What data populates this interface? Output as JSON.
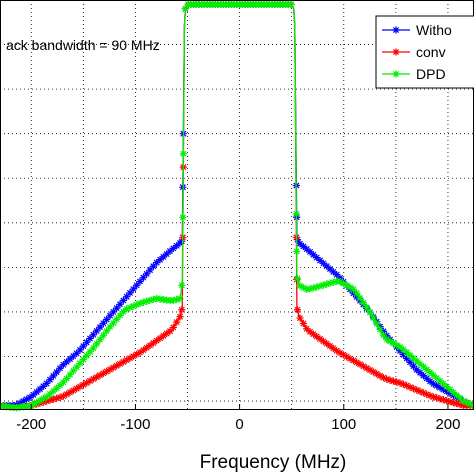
{
  "chart_data": {
    "type": "line",
    "xlabel": "Frequency (MHz)",
    "ylabel": "",
    "title": "",
    "xlim": [
      -230,
      225
    ],
    "ylim": [
      -102,
      -10
    ],
    "xticks": [
      -200,
      -100,
      0,
      100,
      200
    ],
    "xtick_labels": [
      "-200",
      "-100",
      "0",
      "100",
      "200"
    ],
    "grid": true,
    "annotation": "ack bandwidth = 90 MHz",
    "legend_position": "top-right",
    "series": [
      {
        "name": "Witho",
        "color": "#0000ff",
        "x": [
          -230,
          -215,
          -200,
          -185,
          -170,
          -155,
          -140,
          -125,
          -110,
          -95,
          -80,
          -65,
          -57,
          -55,
          -53,
          -52,
          -50,
          50,
          52,
          53,
          55,
          57,
          65,
          80,
          95,
          110,
          125,
          140,
          155,
          170,
          185,
          200,
          215,
          225
        ],
        "y": [
          -101,
          -101,
          -99,
          -96,
          -92,
          -89,
          -85,
          -81,
          -77,
          -73,
          -69,
          -66,
          -64.5,
          -64,
          -16,
          -12,
          -11,
          -11,
          -12,
          -16,
          -63.5,
          -64.5,
          -66,
          -69,
          -72,
          -76,
          -80,
          -85,
          -89,
          -93,
          -96,
          -98,
          -100,
          -101
        ]
      },
      {
        "name": "conv",
        "color": "#ff0000",
        "x": [
          -230,
          -215,
          -200,
          -185,
          -170,
          -155,
          -140,
          -125,
          -110,
          -95,
          -80,
          -65,
          -57,
          -55,
          -53,
          -52,
          -50,
          50,
          52,
          53,
          55,
          57,
          65,
          80,
          95,
          110,
          125,
          140,
          155,
          170,
          185,
          200,
          215,
          225
        ],
        "y": [
          -101,
          -101.5,
          -101,
          -100,
          -99,
          -97,
          -95,
          -93,
          -91,
          -89,
          -86.5,
          -84,
          -81,
          -79,
          -16,
          -12,
          -11,
          -11,
          -12,
          -16,
          -79,
          -81,
          -84,
          -86.5,
          -89,
          -91,
          -93,
          -95,
          -96,
          -97.5,
          -99,
          -100,
          -101,
          -101
        ]
      },
      {
        "name": "DPD",
        "color": "#00ee00",
        "x": [
          -230,
          -215,
          -200,
          -185,
          -170,
          -155,
          -140,
          -125,
          -110,
          -95,
          -80,
          -65,
          -57,
          -55,
          -53,
          -52,
          -50,
          50,
          52,
          53,
          55,
          57,
          65,
          80,
          95,
          110,
          125,
          140,
          155,
          170,
          185,
          200,
          215,
          225
        ],
        "y": [
          -101,
          -101.5,
          -101,
          -99,
          -96,
          -92,
          -88,
          -83.5,
          -79.5,
          -78,
          -77,
          -77.5,
          -77,
          -73,
          -16,
          -12,
          -11,
          -11,
          -12,
          -16,
          -72,
          -74,
          -75,
          -74,
          -73,
          -75,
          -80,
          -86,
          -88,
          -91,
          -94,
          -97,
          -100,
          -101
        ]
      }
    ]
  }
}
